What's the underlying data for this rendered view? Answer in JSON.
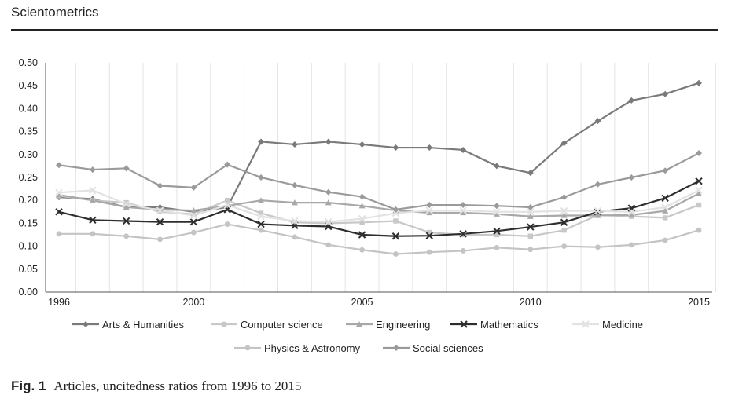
{
  "header": {
    "journal": "Scientometrics"
  },
  "caption": {
    "label": "Fig. 1",
    "text": "Articles, uncitedness ratios from 1996 to 2015"
  },
  "chart_data": {
    "type": "line",
    "x": [
      1996,
      1997,
      1998,
      1999,
      2000,
      2001,
      2002,
      2003,
      2004,
      2005,
      2006,
      2007,
      2008,
      2009,
      2010,
      2011,
      2012,
      2013,
      2014,
      2015
    ],
    "x_tick_labels": [
      "1996",
      "2000",
      "2005",
      "2010",
      "2015"
    ],
    "x_tick_values": [
      1996,
      2000,
      2005,
      2010,
      2015
    ],
    "ylim": [
      0,
      0.5
    ],
    "y_tick_labels": [
      "0.00",
      "0.05",
      "0.10",
      "0.15",
      "0.20",
      "0.25",
      "0.30",
      "0.35",
      "0.40",
      "0.45",
      "0.50"
    ],
    "grid": "vertical",
    "legend_position": "bottom",
    "series": [
      {
        "name": "Arts & Humanities",
        "color": "#7a7a7a",
        "marker": "diamond",
        "values": [
          0.207,
          0.203,
          0.185,
          0.185,
          0.175,
          0.185,
          0.328,
          0.322,
          0.328,
          0.322,
          0.315,
          0.315,
          0.31,
          0.275,
          0.26,
          0.325,
          0.373,
          0.418,
          0.432,
          0.456
        ]
      },
      {
        "name": "Computer science",
        "color": "#c8c8c8",
        "marker": "square",
        "values": [
          0.21,
          0.2,
          0.195,
          0.175,
          0.17,
          0.2,
          0.172,
          0.152,
          0.15,
          0.152,
          0.155,
          0.13,
          0.125,
          0.125,
          0.122,
          0.135,
          0.168,
          0.165,
          0.162,
          0.19
        ]
      },
      {
        "name": "Engineering",
        "color": "#a8a8a8",
        "marker": "triangle",
        "values": [
          0.212,
          0.2,
          0.185,
          0.18,
          0.178,
          0.188,
          0.2,
          0.195,
          0.195,
          0.188,
          0.178,
          0.173,
          0.173,
          0.17,
          0.165,
          0.167,
          0.167,
          0.168,
          0.177,
          0.215
        ]
      },
      {
        "name": "Mathematics",
        "color": "#2e2e2e",
        "marker": "x",
        "values": [
          0.175,
          0.157,
          0.155,
          0.153,
          0.153,
          0.18,
          0.148,
          0.145,
          0.143,
          0.125,
          0.122,
          0.123,
          0.127,
          0.133,
          0.142,
          0.152,
          0.175,
          0.183,
          0.205,
          0.242
        ]
      },
      {
        "name": "Medicine",
        "color": "#e2e2e2",
        "marker": "x",
        "values": [
          0.217,
          0.222,
          0.192,
          0.178,
          0.167,
          0.19,
          0.165,
          0.155,
          0.153,
          0.16,
          0.172,
          0.178,
          0.178,
          0.175,
          0.175,
          0.177,
          0.177,
          0.175,
          0.185,
          0.222
        ]
      },
      {
        "name": "Physics & Astronomy",
        "color": "#c4c4c4",
        "marker": "circle",
        "values": [
          0.127,
          0.127,
          0.122,
          0.115,
          0.13,
          0.148,
          0.135,
          0.12,
          0.103,
          0.092,
          0.083,
          0.087,
          0.09,
          0.097,
          0.093,
          0.1,
          0.098,
          0.103,
          0.113,
          0.135
        ]
      },
      {
        "name": "Social sciences",
        "color": "#9a9a9a",
        "marker": "diamond",
        "values": [
          0.277,
          0.267,
          0.27,
          0.232,
          0.228,
          0.278,
          0.25,
          0.233,
          0.218,
          0.208,
          0.18,
          0.19,
          0.19,
          0.188,
          0.185,
          0.207,
          0.235,
          0.25,
          0.265,
          0.303
        ]
      }
    ]
  }
}
